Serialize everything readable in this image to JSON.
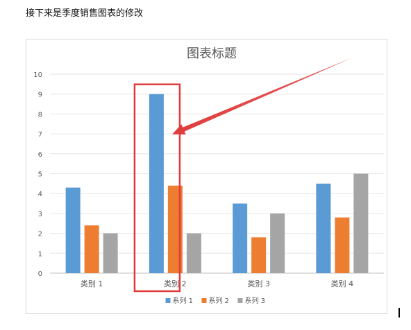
{
  "intro_text": "接下来是季度销售图表的修改",
  "chart_data": {
    "type": "bar",
    "title": "图表标题",
    "categories": [
      "类别 1",
      "类别 2",
      "类别 3",
      "类别 4"
    ],
    "series": [
      {
        "name": "系列 1",
        "values": [
          4.3,
          9,
          3.5,
          4.5
        ],
        "color": "#5b9bd5"
      },
      {
        "name": "系列 2",
        "values": [
          2.4,
          4.4,
          1.8,
          2.8
        ],
        "color": "#ed7d31"
      },
      {
        "name": "系列 3",
        "values": [
          2,
          2,
          3,
          5
        ],
        "color": "#a5a5a5"
      }
    ],
    "ylim": [
      0,
      10
    ],
    "yticks": [
      0,
      1,
      2,
      3,
      4,
      5,
      6,
      7,
      8,
      9,
      10
    ],
    "grid": true,
    "legend": "bottom",
    "annotations": [
      {
        "type": "highlight-box",
        "target_category": "类别 2",
        "target_series": "系列 1",
        "color": "#e03c3c"
      },
      {
        "type": "arrow",
        "points_to_category": "类别 2",
        "points_to_series": "系列 1",
        "color": "#e03c3c"
      }
    ]
  }
}
